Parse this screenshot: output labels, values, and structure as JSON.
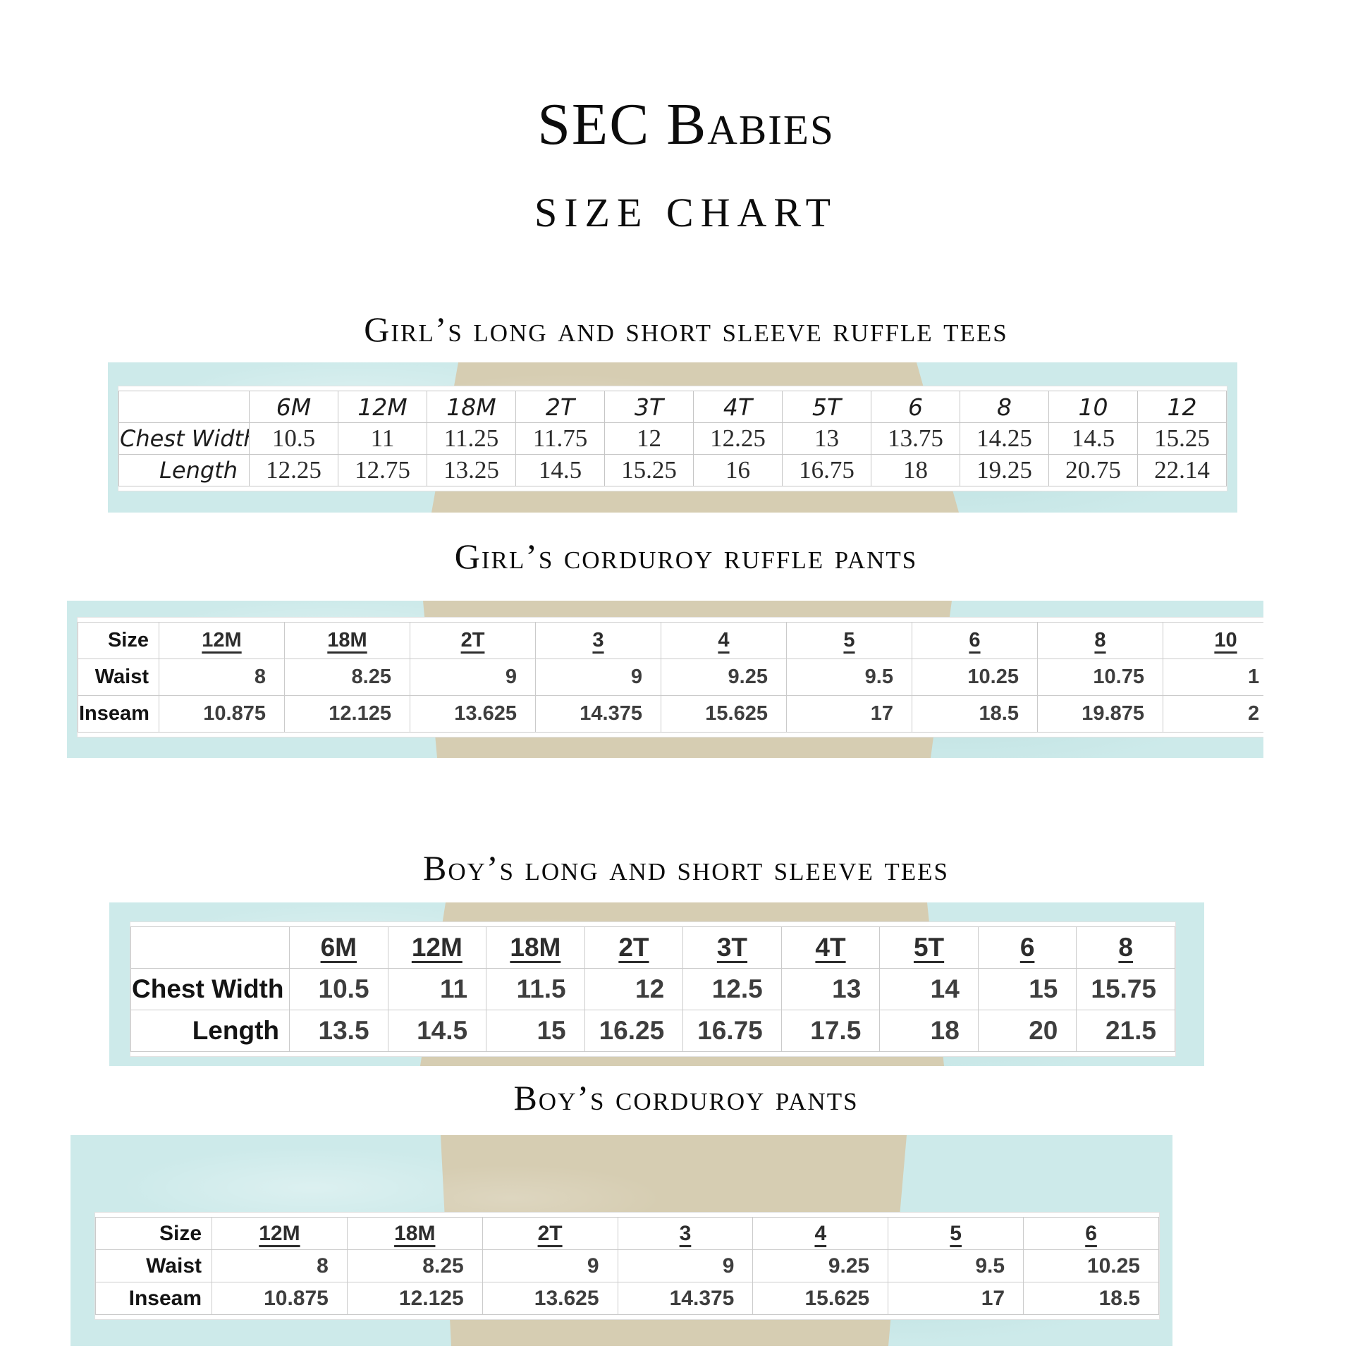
{
  "page": {
    "title": "SEC Babies",
    "subtitle": "SIZE CHART"
  },
  "colors": {
    "band_blue": "#cdeaea",
    "ribbon_tan": "#d6cdb2",
    "grid_gray": "#cbcbcb",
    "text_dark": "#3e3e3e"
  },
  "sections": [
    {
      "heading": "Girl’s long and short sleeve ruffle tees",
      "table": {
        "corner_label": "",
        "columns": [
          "6M",
          "12M",
          "18M",
          "2T",
          "3T",
          "4T",
          "5T",
          "6",
          "8",
          "10",
          "12"
        ],
        "rows": [
          {
            "label": "Chest Width",
            "values": [
              "10.5",
              "11",
              "11.25",
              "11.75",
              "12",
              "12.25",
              "13",
              "13.75",
              "14.25",
              "14.5",
              "15.25"
            ]
          },
          {
            "label": "Length",
            "values": [
              "12.25",
              "12.75",
              "13.25",
              "14.5",
              "15.25",
              "16",
              "16.75",
              "18",
              "19.25",
              "20.75",
              "22.14"
            ]
          }
        ]
      }
    },
    {
      "heading": "Girl’s corduroy ruffle pants",
      "table": {
        "corner_label": "Size",
        "clipped": true,
        "columns": [
          "12M",
          "18M",
          "2T",
          "3",
          "4",
          "5",
          "6",
          "8",
          "10"
        ],
        "rows": [
          {
            "label": "Waist",
            "values": [
              "8",
              "8.25",
              "9",
              "9",
              "9.25",
              "9.5",
              "10.25",
              "10.75",
              "1"
            ]
          },
          {
            "label": "Inseam",
            "values": [
              "10.875",
              "12.125",
              "13.625",
              "14.375",
              "15.625",
              "17",
              "18.5",
              "19.875",
              "2"
            ]
          }
        ]
      }
    },
    {
      "heading": "Boy’s long and short sleeve tees",
      "table": {
        "corner_label": "",
        "columns": [
          "6M",
          "12M",
          "18M",
          "2T",
          "3T",
          "4T",
          "5T",
          "6",
          "8"
        ],
        "rows": [
          {
            "label": "Chest Width",
            "values": [
              "10.5",
              "11",
              "11.5",
              "12",
              "12.5",
              "13",
              "14",
              "15",
              "15.75"
            ]
          },
          {
            "label": "Length",
            "values": [
              "13.5",
              "14.5",
              "15",
              "16.25",
              "16.75",
              "17.5",
              "18",
              "20",
              "21.5"
            ]
          }
        ]
      }
    },
    {
      "heading": "Boy’s corduroy pants",
      "table": {
        "corner_label": "Size",
        "columns": [
          "12M",
          "18M",
          "2T",
          "3",
          "4",
          "5",
          "6"
        ],
        "rows": [
          {
            "label": "Waist",
            "values": [
              "8",
              "8.25",
              "9",
              "9",
              "9.25",
              "9.5",
              "10.25"
            ]
          },
          {
            "label": "Inseam",
            "values": [
              "10.875",
              "12.125",
              "13.625",
              "14.375",
              "15.625",
              "17",
              "18.5"
            ]
          }
        ]
      }
    }
  ]
}
